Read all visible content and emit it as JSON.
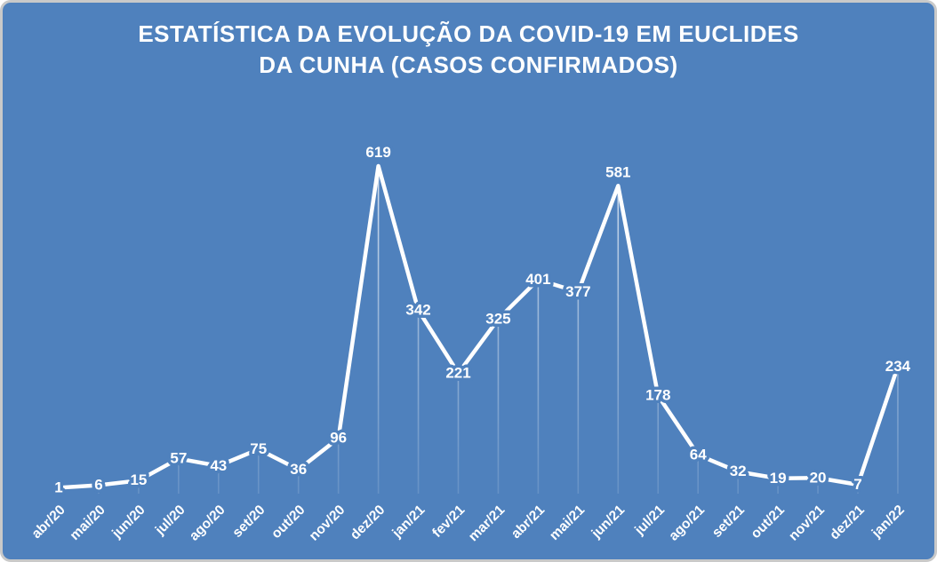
{
  "chart_data": {
    "type": "line",
    "title": "ESTATÍSTICA DA EVOLUÇÃO DA COVID-19 EM EUCLIDES DA CUNHA (CASOS CONFIRMADOS)",
    "title_lines": [
      "ESTATÍSTICA DA EVOLUÇÃO DA COVID-19 EM EUCLIDES",
      "DA CUNHA (CASOS CONFIRMADOS)"
    ],
    "categories": [
      "abr/20",
      "mai/20",
      "jun/20",
      "jul/20",
      "ago/20",
      "set/20",
      "out/20",
      "nov/20",
      "dez/20",
      "jan/21",
      "fev/21",
      "mar/21",
      "abr/21",
      "mai/21",
      "jun/21",
      "jul/21",
      "ago/21",
      "set/21",
      "out/21",
      "nov/21",
      "dez/21",
      "jan/22"
    ],
    "values": [
      1,
      6,
      15,
      57,
      43,
      75,
      36,
      96,
      619,
      342,
      221,
      325,
      401,
      377,
      581,
      178,
      64,
      32,
      19,
      20,
      7,
      234
    ],
    "xlabel": "",
    "ylabel": "",
    "ylim": [
      0,
      650
    ],
    "grid": false,
    "legend": false,
    "data_labels": "centered-on-points",
    "drop_lines": true,
    "x_tick_rotation": -45,
    "colors": {
      "background": "#4F81BD",
      "line": "#FFFFFF",
      "labels": "#FFFFFF",
      "tick_labels": "#FFFFFF",
      "border": "#C9C9C9"
    }
  }
}
